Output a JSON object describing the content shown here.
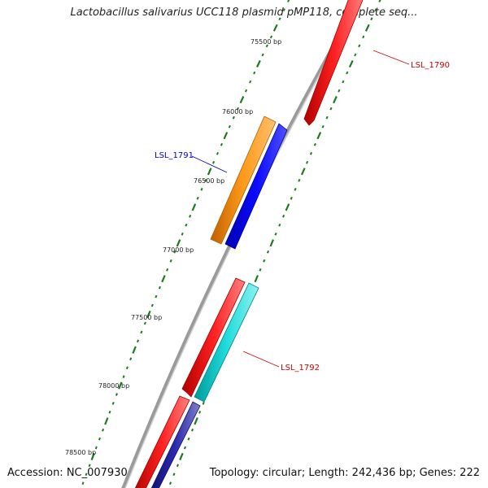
{
  "title": "Lactobacillus salivarius UCC118 plasmid pMP118, complete seq...",
  "footer": {
    "accession": "Accession: NC_007930",
    "summary": "Topology: circular; Length: 242,436 bp; Genes: 222"
  },
  "ruler": {
    "labels": [
      "75500 bp",
      "76000 bp",
      "76500 bp",
      "77000 bp",
      "77500 bp",
      "78000 bp",
      "78500 bp"
    ]
  },
  "genes": [
    {
      "name": "LSL_1790",
      "color": "#ff0000"
    },
    {
      "name": "LSL_1791",
      "color": "#0000ff"
    },
    {
      "name": "LSL_1792",
      "color": "#dd0000"
    }
  ],
  "feature_colors": {
    "backbone": "#888888",
    "orange": "#ff8c00",
    "blue": "#0000ee",
    "red": "#ee0000",
    "cyan": "#00cccc",
    "navy": "#1a1a99",
    "tick": "#1e7a1e"
  }
}
